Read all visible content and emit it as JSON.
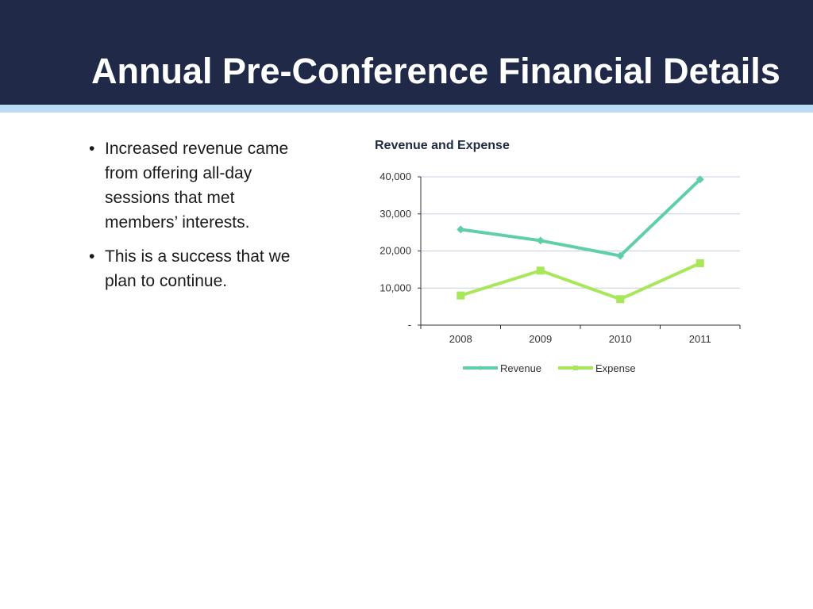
{
  "slide": {
    "title": "Annual Pre-Conference Financial Details",
    "bullets": [
      "Increased revenue came from offering all-day sessions that met members’ interests.",
      "This is a success that we plan to continue."
    ]
  },
  "colors": {
    "header": "#202a48",
    "accent_stripe": "#bcdcf5",
    "revenue": "#5fcfa8",
    "expense": "#a8e65a"
  },
  "chart_data": {
    "type": "line",
    "title": "Revenue and Expense",
    "categories": [
      "2008",
      "2009",
      "2010",
      "2011"
    ],
    "series": [
      {
        "name": "Revenue",
        "values": [
          25800,
          22800,
          18700,
          39300
        ],
        "marker": "diamond"
      },
      {
        "name": "Expense",
        "values": [
          8000,
          14700,
          7000,
          16700
        ],
        "marker": "square"
      }
    ],
    "ylim": [
      0,
      40000
    ],
    "yticks": [
      0,
      10000,
      20000,
      30000,
      40000
    ],
    "ytick_labels": [
      "-",
      "10,000",
      "20,000",
      "30,000",
      "40,000"
    ],
    "grid": true,
    "legend": "bottom"
  }
}
